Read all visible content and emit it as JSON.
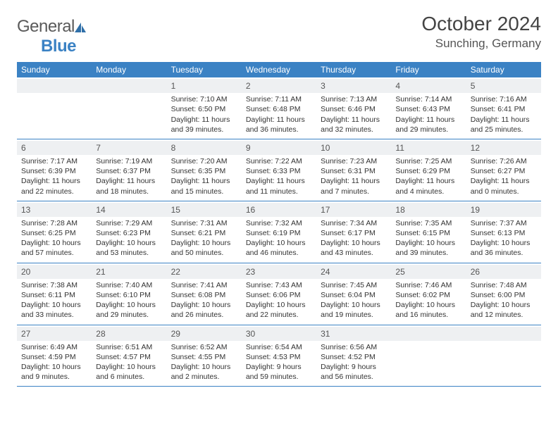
{
  "brand": {
    "name_part1": "General",
    "name_part2": "Blue"
  },
  "title": "October 2024",
  "location": "Sunching, Germany",
  "colors": {
    "header_bg": "#3b82c4",
    "header_text": "#ffffff",
    "daynum_bg": "#eef0f2",
    "border": "#3b82c4",
    "text": "#333333"
  },
  "weekdays": [
    "Sunday",
    "Monday",
    "Tuesday",
    "Wednesday",
    "Thursday",
    "Friday",
    "Saturday"
  ],
  "weeks": [
    [
      null,
      null,
      {
        "n": "1",
        "sr": "7:10 AM",
        "ss": "6:50 PM",
        "dl": "11 hours and 39 minutes."
      },
      {
        "n": "2",
        "sr": "7:11 AM",
        "ss": "6:48 PM",
        "dl": "11 hours and 36 minutes."
      },
      {
        "n": "3",
        "sr": "7:13 AM",
        "ss": "6:46 PM",
        "dl": "11 hours and 32 minutes."
      },
      {
        "n": "4",
        "sr": "7:14 AM",
        "ss": "6:43 PM",
        "dl": "11 hours and 29 minutes."
      },
      {
        "n": "5",
        "sr": "7:16 AM",
        "ss": "6:41 PM",
        "dl": "11 hours and 25 minutes."
      }
    ],
    [
      {
        "n": "6",
        "sr": "7:17 AM",
        "ss": "6:39 PM",
        "dl": "11 hours and 22 minutes."
      },
      {
        "n": "7",
        "sr": "7:19 AM",
        "ss": "6:37 PM",
        "dl": "11 hours and 18 minutes."
      },
      {
        "n": "8",
        "sr": "7:20 AM",
        "ss": "6:35 PM",
        "dl": "11 hours and 15 minutes."
      },
      {
        "n": "9",
        "sr": "7:22 AM",
        "ss": "6:33 PM",
        "dl": "11 hours and 11 minutes."
      },
      {
        "n": "10",
        "sr": "7:23 AM",
        "ss": "6:31 PM",
        "dl": "11 hours and 7 minutes."
      },
      {
        "n": "11",
        "sr": "7:25 AM",
        "ss": "6:29 PM",
        "dl": "11 hours and 4 minutes."
      },
      {
        "n": "12",
        "sr": "7:26 AM",
        "ss": "6:27 PM",
        "dl": "11 hours and 0 minutes."
      }
    ],
    [
      {
        "n": "13",
        "sr": "7:28 AM",
        "ss": "6:25 PM",
        "dl": "10 hours and 57 minutes."
      },
      {
        "n": "14",
        "sr": "7:29 AM",
        "ss": "6:23 PM",
        "dl": "10 hours and 53 minutes."
      },
      {
        "n": "15",
        "sr": "7:31 AM",
        "ss": "6:21 PM",
        "dl": "10 hours and 50 minutes."
      },
      {
        "n": "16",
        "sr": "7:32 AM",
        "ss": "6:19 PM",
        "dl": "10 hours and 46 minutes."
      },
      {
        "n": "17",
        "sr": "7:34 AM",
        "ss": "6:17 PM",
        "dl": "10 hours and 43 minutes."
      },
      {
        "n": "18",
        "sr": "7:35 AM",
        "ss": "6:15 PM",
        "dl": "10 hours and 39 minutes."
      },
      {
        "n": "19",
        "sr": "7:37 AM",
        "ss": "6:13 PM",
        "dl": "10 hours and 36 minutes."
      }
    ],
    [
      {
        "n": "20",
        "sr": "7:38 AM",
        "ss": "6:11 PM",
        "dl": "10 hours and 33 minutes."
      },
      {
        "n": "21",
        "sr": "7:40 AM",
        "ss": "6:10 PM",
        "dl": "10 hours and 29 minutes."
      },
      {
        "n": "22",
        "sr": "7:41 AM",
        "ss": "6:08 PM",
        "dl": "10 hours and 26 minutes."
      },
      {
        "n": "23",
        "sr": "7:43 AM",
        "ss": "6:06 PM",
        "dl": "10 hours and 22 minutes."
      },
      {
        "n": "24",
        "sr": "7:45 AM",
        "ss": "6:04 PM",
        "dl": "10 hours and 19 minutes."
      },
      {
        "n": "25",
        "sr": "7:46 AM",
        "ss": "6:02 PM",
        "dl": "10 hours and 16 minutes."
      },
      {
        "n": "26",
        "sr": "7:48 AM",
        "ss": "6:00 PM",
        "dl": "10 hours and 12 minutes."
      }
    ],
    [
      {
        "n": "27",
        "sr": "6:49 AM",
        "ss": "4:59 PM",
        "dl": "10 hours and 9 minutes."
      },
      {
        "n": "28",
        "sr": "6:51 AM",
        "ss": "4:57 PM",
        "dl": "10 hours and 6 minutes."
      },
      {
        "n": "29",
        "sr": "6:52 AM",
        "ss": "4:55 PM",
        "dl": "10 hours and 2 minutes."
      },
      {
        "n": "30",
        "sr": "6:54 AM",
        "ss": "4:53 PM",
        "dl": "9 hours and 59 minutes."
      },
      {
        "n": "31",
        "sr": "6:56 AM",
        "ss": "4:52 PM",
        "dl": "9 hours and 56 minutes."
      },
      null,
      null
    ]
  ],
  "labels": {
    "sunrise": "Sunrise:",
    "sunset": "Sunset:",
    "daylight": "Daylight:"
  }
}
